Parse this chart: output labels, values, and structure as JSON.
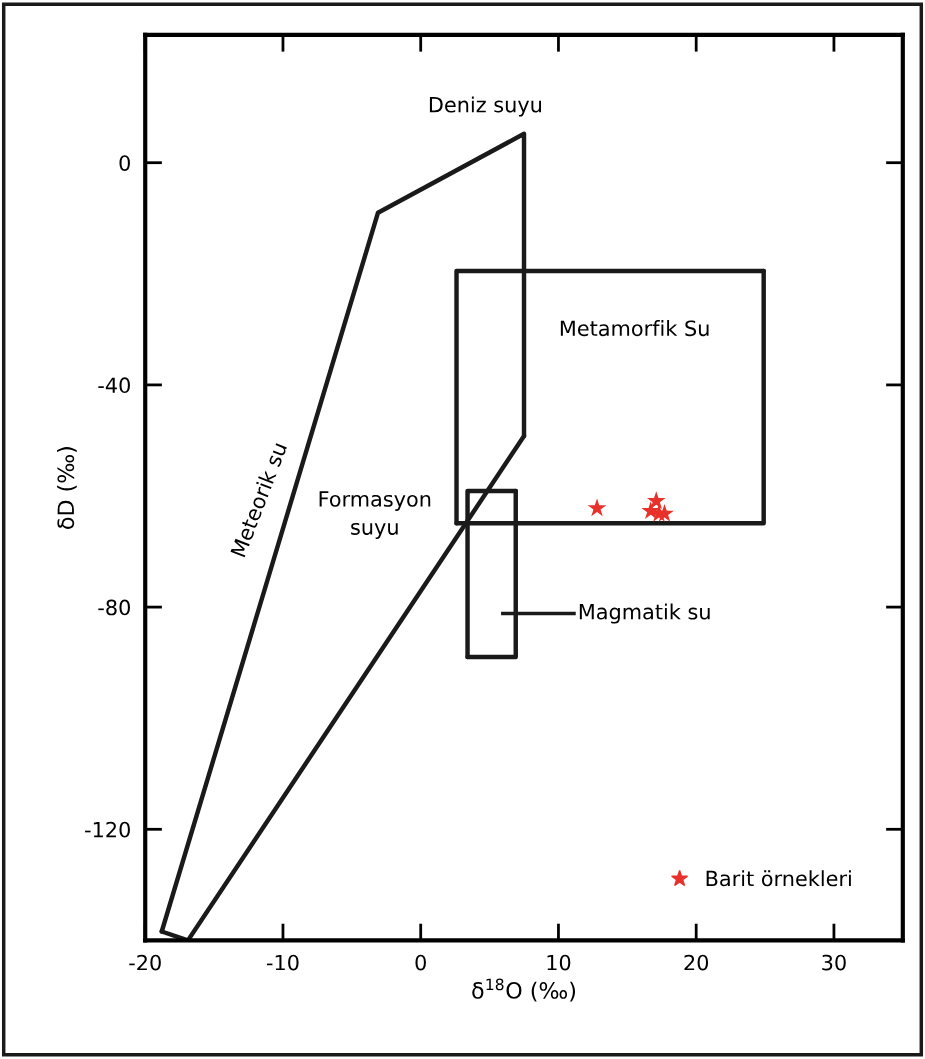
{
  "chart_data": {
    "type": "scatter",
    "xlabel": "δ$^{18}$O (‰)",
    "ylabel": "δD (‰)",
    "xlim": [
      -20,
      35
    ],
    "ylim": [
      -140,
      23
    ],
    "xticks": [
      -20,
      -10,
      0,
      10,
      20,
      30
    ],
    "yticks": [
      0,
      -40,
      -80,
      -120
    ],
    "grid": false,
    "legend": "bottom right",
    "marker": "star",
    "series": [
      {
        "type": "line",
        "color": "#1a1a1a",
        "marker": "none",
        "x": [
          -18.8,
          -3.1,
          7.5,
          7.5
        ],
        "values": [
          -138.4,
          -9,
          5.2,
          -49.2
        ]
      },
      {
        "type": "line",
        "color": "#1a1a1a",
        "marker": "none",
        "x": [
          -18.8,
          -16.9,
          7.5
        ],
        "values": [
          -138.4,
          -140,
          -49.2
        ]
      },
      {
        "type": "line",
        "color": "#1a1a1a",
        "marker": "none",
        "x": [
          2.6,
          2.6,
          24.9
        ],
        "values": [
          -64.9,
          -19.5,
          -19.5
        ]
      },
      {
        "type": "line",
        "color": "#1a1a1a",
        "marker": "none",
        "x": [
          2.6,
          24.9,
          24.9
        ],
        "values": [
          -64.9,
          -64.9,
          -19.5
        ]
      },
      {
        "type": "line",
        "color": "#1a1a1a",
        "marker": "none",
        "x": [
          3.4,
          3.4,
          6.9
        ],
        "values": [
          -89,
          -59.1,
          -59.1
        ]
      },
      {
        "type": "line",
        "color": "#1a1a1a",
        "marker": "none",
        "x": [
          3.4,
          6.9,
          6.9
        ],
        "values": [
          -89,
          -89,
          -59.1
        ]
      },
      {
        "name": "Barit örnekleri",
        "color": "#e8312a",
        "x": [
          12.8,
          16.7,
          17.1,
          17.3,
          17.7
        ],
        "values": [
          -62.2,
          -62.7,
          -60.9,
          -63.2,
          -63.2
        ]
      }
    ],
    "annotations": [
      "Deniz suyu",
      "Metamorfik Su",
      "Formasyon\nsuyu",
      "Meteorik su",
      "Magmatik su"
    ]
  }
}
